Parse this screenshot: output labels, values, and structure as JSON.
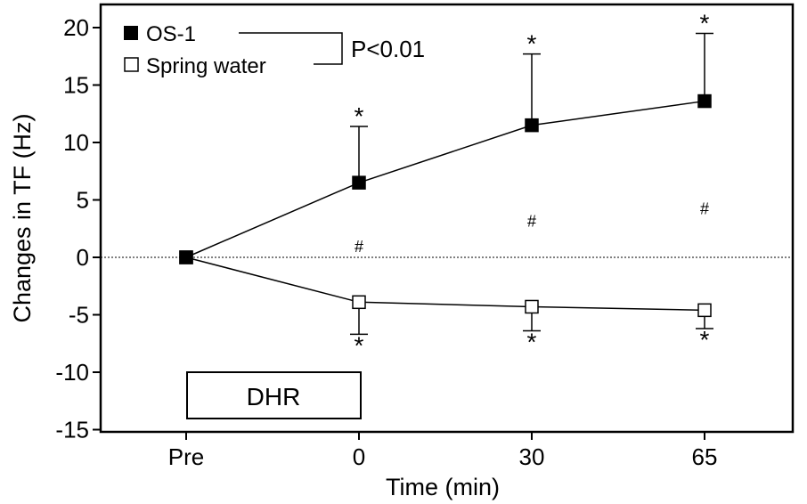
{
  "chart_data": {
    "type": "line",
    "title": "",
    "xlabel": "Time (min)",
    "ylabel": "Changes in TF  (Hz)",
    "categories": [
      "Pre",
      "0",
      "30",
      "65"
    ],
    "ylim": [
      -15,
      20
    ],
    "yticks": [
      20,
      15,
      10,
      5,
      0,
      -5,
      -10,
      -15
    ],
    "ytick_labels": [
      "20",
      "15",
      "10",
      "5",
      "0",
      "-5",
      "-10",
      "-15"
    ],
    "grid": false,
    "zero_line": "dotted",
    "legend_position": "top-left",
    "series": [
      {
        "name": "OS-1",
        "marker": "filled-square",
        "values": [
          0,
          6.5,
          11.5,
          13.6
        ],
        "error": [
          0,
          4.9,
          6.2,
          5.9
        ],
        "error_direction": "up",
        "significance": [
          "",
          "*",
          "*",
          "*"
        ]
      },
      {
        "name": "Spring water",
        "marker": "open-square",
        "values": [
          0,
          -3.9,
          -4.3,
          -4.6
        ],
        "error": [
          0,
          2.8,
          2.1,
          1.6
        ],
        "error_direction": "down",
        "significance": [
          "",
          "*",
          "*",
          "*"
        ]
      }
    ],
    "between_group_marks": [
      "",
      "#",
      "#",
      "#"
    ],
    "between_group_y": [
      null,
      1,
      3.2,
      4.3
    ],
    "annotations": {
      "pvalue": "P<0.01",
      "box_label": "DHR"
    }
  }
}
